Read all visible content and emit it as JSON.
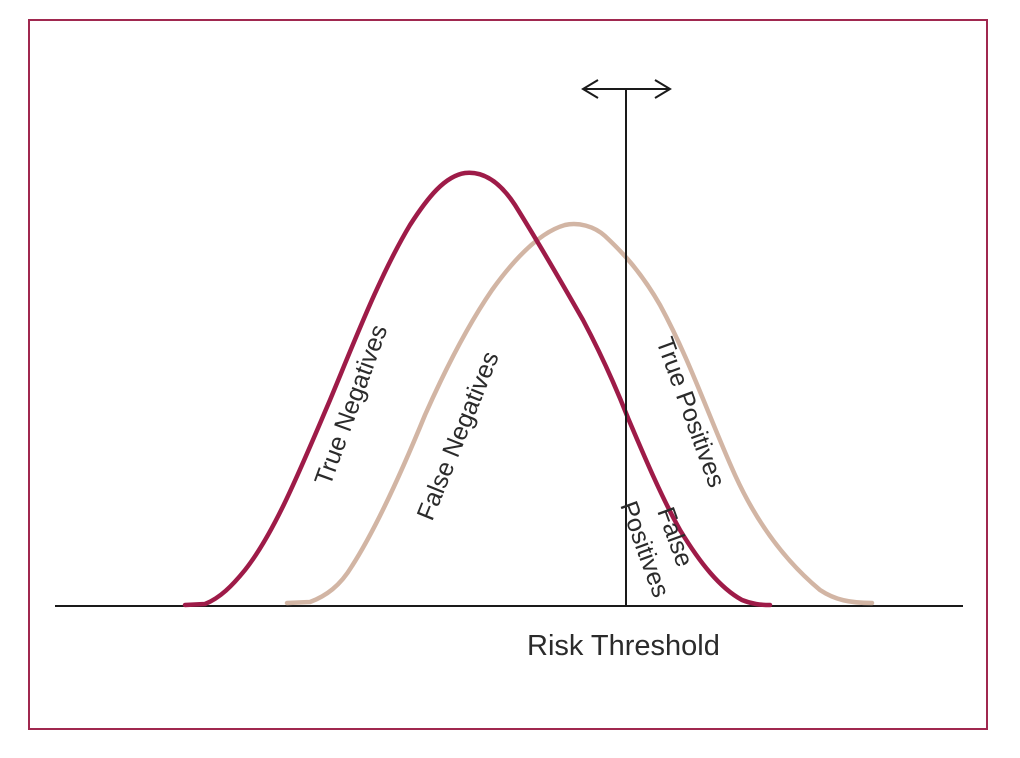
{
  "diagram": {
    "labels": {
      "true_negatives": "True Negatives",
      "false_negatives": "False Negatives",
      "true_positives": "True Positives",
      "false_positives_line1": "False",
      "false_positives_line2": "Positives",
      "risk_threshold": "Risk Threshold"
    },
    "colors": {
      "negative_curve": "#9e1b48",
      "positive_curve": "#d2b5a4",
      "frame": "#a0284f",
      "axis": "#1a1a1a"
    }
  }
}
